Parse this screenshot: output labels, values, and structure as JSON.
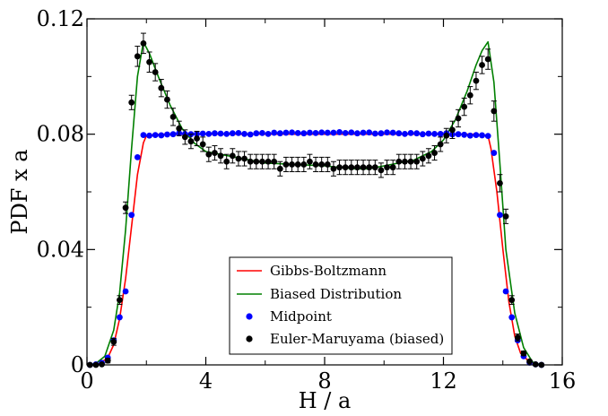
{
  "chart_data": {
    "type": "line",
    "title": "",
    "xlabel": "H / a",
    "ylabel": "PDF x a",
    "xlim": [
      0,
      16
    ],
    "ylim": [
      0,
      0.12
    ],
    "xticks": [
      0,
      4,
      8,
      12,
      16
    ],
    "xtick_labels": [
      "0",
      "4",
      "8",
      "12",
      "16"
    ],
    "yticks": [
      0,
      0.04,
      0.08,
      0.12
    ],
    "ytick_labels": [
      "0",
      "0.04",
      "0.08",
      "0.12"
    ],
    "grid": false,
    "legend_position": "bottom-center",
    "colors": {
      "gibbs": "#ff0000",
      "biased": "#008000",
      "midpoint": "#0000ff",
      "euler": "#000000"
    },
    "series": [
      {
        "name": "Gibbs-Boltzmann",
        "kind": "line",
        "color": "#ff0000",
        "x": [
          0.0,
          0.4,
          0.7,
          0.9,
          1.1,
          1.3,
          1.5,
          1.7,
          1.9,
          2.0,
          2.5,
          4,
          6,
          8,
          10,
          12,
          13.0,
          13.5,
          13.6,
          13.8,
          14.0,
          14.2,
          14.4,
          14.6,
          14.9,
          15.2,
          15.4
        ],
        "y": [
          0.0,
          0.0003,
          0.0025,
          0.007,
          0.016,
          0.03,
          0.048,
          0.066,
          0.077,
          0.0795,
          0.08,
          0.08,
          0.08,
          0.08,
          0.08,
          0.08,
          0.08,
          0.0795,
          0.075,
          0.06,
          0.04,
          0.022,
          0.01,
          0.004,
          0.001,
          0.0002,
          0.0
        ]
      },
      {
        "name": "Biased Distribution",
        "kind": "line",
        "color": "#008000",
        "x": [
          0.0,
          0.3,
          0.6,
          0.9,
          1.1,
          1.3,
          1.5,
          1.7,
          1.9,
          2.1,
          2.4,
          2.8,
          3.2,
          3.6,
          4.0,
          5,
          6,
          7,
          8,
          9,
          9.5,
          10,
          11,
          11.6,
          12.0,
          12.4,
          12.8,
          13.1,
          13.3,
          13.5,
          13.7,
          13.9,
          14.1,
          14.4,
          14.7,
          15.0,
          15.3
        ],
        "y": [
          0.0,
          0.0005,
          0.003,
          0.012,
          0.025,
          0.047,
          0.075,
          0.1,
          0.112,
          0.108,
          0.1,
          0.09,
          0.082,
          0.077,
          0.074,
          0.072,
          0.07,
          0.0695,
          0.069,
          0.068,
          0.068,
          0.069,
          0.071,
          0.074,
          0.078,
          0.085,
          0.095,
          0.104,
          0.109,
          0.112,
          0.098,
          0.07,
          0.04,
          0.018,
          0.006,
          0.001,
          0.0
        ]
      },
      {
        "name": "Midpoint",
        "kind": "points",
        "color": "#0000ff",
        "x": [
          0.1,
          0.3,
          0.5,
          0.7,
          0.9,
          1.1,
          1.3,
          1.5,
          1.7,
          1.9,
          2.1,
          2.3,
          2.5,
          2.7,
          2.9,
          3.1,
          3.3,
          3.5,
          3.7,
          3.9,
          4.1,
          4.3,
          4.5,
          4.7,
          4.9,
          5.1,
          5.3,
          5.5,
          5.7,
          5.9,
          6.1,
          6.3,
          6.5,
          6.7,
          6.9,
          7.1,
          7.3,
          7.5,
          7.7,
          7.9,
          8.1,
          8.3,
          8.5,
          8.7,
          8.9,
          9.1,
          9.3,
          9.5,
          9.7,
          9.9,
          10.1,
          10.3,
          10.5,
          10.7,
          10.9,
          11.1,
          11.3,
          11.5,
          11.7,
          11.9,
          12.1,
          12.3,
          12.5,
          12.7,
          12.9,
          13.1,
          13.3,
          13.5,
          13.7,
          13.9,
          14.1,
          14.3,
          14.5,
          14.7,
          14.9,
          15.1,
          15.3
        ],
        "y": [
          0.0,
          0.0002,
          0.0007,
          0.0025,
          0.0085,
          0.0165,
          0.0255,
          0.052,
          0.072,
          0.0797,
          0.0795,
          0.0797,
          0.0796,
          0.0799,
          0.08,
          0.0803,
          0.0801,
          0.08,
          0.0801,
          0.0802,
          0.0801,
          0.0803,
          0.0802,
          0.0801,
          0.0803,
          0.0804,
          0.0801,
          0.0799,
          0.0803,
          0.0804,
          0.0801,
          0.0805,
          0.0803,
          0.0805,
          0.0806,
          0.0804,
          0.0803,
          0.0805,
          0.0804,
          0.0806,
          0.0805,
          0.0805,
          0.0807,
          0.0804,
          0.0806,
          0.0803,
          0.0805,
          0.0806,
          0.0802,
          0.0803,
          0.0806,
          0.0805,
          0.0803,
          0.0801,
          0.0804,
          0.0803,
          0.08,
          0.0802,
          0.0801,
          0.0801,
          0.0803,
          0.0799,
          0.08,
          0.0798,
          0.0795,
          0.0797,
          0.0796,
          0.0794,
          0.0735,
          0.052,
          0.0255,
          0.0165,
          0.0085,
          0.003,
          0.0008,
          0.0002,
          0.0
        ]
      },
      {
        "name": "Euler-Maruyama (biased)",
        "kind": "points_errorbars",
        "color": "#000000",
        "x": [
          0.1,
          0.3,
          0.5,
          0.7,
          0.9,
          1.1,
          1.3,
          1.5,
          1.7,
          1.9,
          2.1,
          2.3,
          2.5,
          2.7,
          2.9,
          3.1,
          3.3,
          3.5,
          3.7,
          3.9,
          4.1,
          4.3,
          4.5,
          4.7,
          4.9,
          5.1,
          5.3,
          5.5,
          5.7,
          5.9,
          6.1,
          6.3,
          6.5,
          6.7,
          6.9,
          7.1,
          7.3,
          7.5,
          7.7,
          7.9,
          8.1,
          8.3,
          8.5,
          8.7,
          8.9,
          9.1,
          9.3,
          9.5,
          9.7,
          9.9,
          10.1,
          10.3,
          10.5,
          10.7,
          10.9,
          11.1,
          11.3,
          11.5,
          11.7,
          11.9,
          12.1,
          12.3,
          12.5,
          12.7,
          12.9,
          13.1,
          13.3,
          13.5,
          13.7,
          13.9,
          14.1,
          14.3,
          14.5,
          14.7,
          14.9,
          15.1,
          15.3
        ],
        "y": [
          0.0,
          0.0,
          0.0002,
          0.0015,
          0.008,
          0.0225,
          0.0545,
          0.091,
          0.107,
          0.1115,
          0.105,
          0.1015,
          0.096,
          0.092,
          0.086,
          0.082,
          0.079,
          0.0775,
          0.0785,
          0.0765,
          0.073,
          0.0735,
          0.0725,
          0.0705,
          0.0725,
          0.0715,
          0.0715,
          0.0705,
          0.0705,
          0.0705,
          0.0705,
          0.0705,
          0.068,
          0.0695,
          0.0695,
          0.0695,
          0.0695,
          0.0705,
          0.0695,
          0.0695,
          0.0695,
          0.068,
          0.0685,
          0.0685,
          0.0685,
          0.0685,
          0.0685,
          0.0685,
          0.0685,
          0.0675,
          0.0685,
          0.0685,
          0.0705,
          0.0705,
          0.0705,
          0.0705,
          0.0715,
          0.0725,
          0.0735,
          0.0765,
          0.0795,
          0.0815,
          0.0855,
          0.0895,
          0.0935,
          0.0985,
          0.104,
          0.106,
          0.088,
          0.063,
          0.0515,
          0.0225,
          0.0095,
          0.004,
          0.0012,
          0.0002,
          0.0
        ],
        "err": [
          0.0,
          0.0,
          0.0003,
          0.0008,
          0.0012,
          0.0015,
          0.002,
          0.0025,
          0.0035,
          0.0035,
          0.0035,
          0.003,
          0.003,
          0.003,
          0.003,
          0.0025,
          0.0025,
          0.0025,
          0.0025,
          0.0025,
          0.0025,
          0.0025,
          0.0025,
          0.0025,
          0.0025,
          0.0025,
          0.0025,
          0.0025,
          0.0025,
          0.0025,
          0.0025,
          0.0025,
          0.0025,
          0.0025,
          0.0025,
          0.0025,
          0.0025,
          0.0025,
          0.0025,
          0.0025,
          0.0025,
          0.0025,
          0.0025,
          0.0025,
          0.0025,
          0.0025,
          0.0025,
          0.0025,
          0.0025,
          0.0025,
          0.0025,
          0.0025,
          0.0025,
          0.0025,
          0.0025,
          0.0025,
          0.0025,
          0.0025,
          0.0025,
          0.0025,
          0.0025,
          0.003,
          0.003,
          0.003,
          0.003,
          0.003,
          0.003,
          0.0035,
          0.0035,
          0.003,
          0.0025,
          0.0015,
          0.0012,
          0.0008,
          0.0005,
          0.0002,
          0.0
        ]
      }
    ]
  }
}
